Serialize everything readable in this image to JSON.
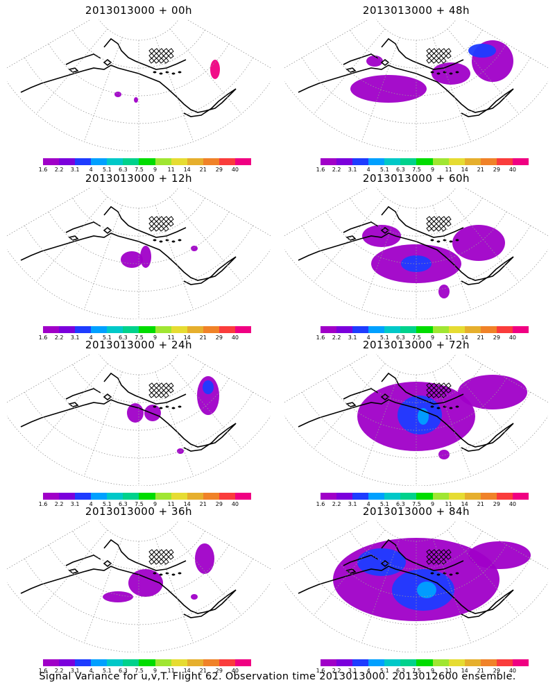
{
  "chart_data": {
    "type": "heatmap",
    "description_title": "",
    "colorbar": {
      "labels": [
        "1.6",
        "2.2",
        "3.1",
        "4",
        "5.1",
        "6.3",
        "7.5",
        "9",
        "11",
        "14",
        "21",
        "29",
        "40"
      ],
      "colors": [
        "#a000c8",
        "#7b00dc",
        "#1e3cff",
        "#00a0ff",
        "#00c8c8",
        "#00d28c",
        "#00dc00",
        "#a0e632",
        "#e6dc32",
        "#e6af2d",
        "#f08228",
        "#fa3c3c",
        "#f00082"
      ]
    },
    "panels": [
      {
        "title": "2013013000 + 00h",
        "intensity": 0
      },
      {
        "title": "2013013000 + 48h",
        "intensity": 2
      },
      {
        "title": "2013013000 + 12h",
        "intensity": 1
      },
      {
        "title": "2013013000 + 60h",
        "intensity": 3
      },
      {
        "title": "2013013000 + 24h",
        "intensity": 1
      },
      {
        "title": "2013013000 + 72h",
        "intensity": 4
      },
      {
        "title": "2013013000 + 36h",
        "intensity": 2
      },
      {
        "title": "2013013000 + 84h",
        "intensity": 5
      }
    ]
  },
  "caption": "Signal Variance for u,v,T. Flight 62. Observation time 2013013000. 2013012600 ensemble."
}
